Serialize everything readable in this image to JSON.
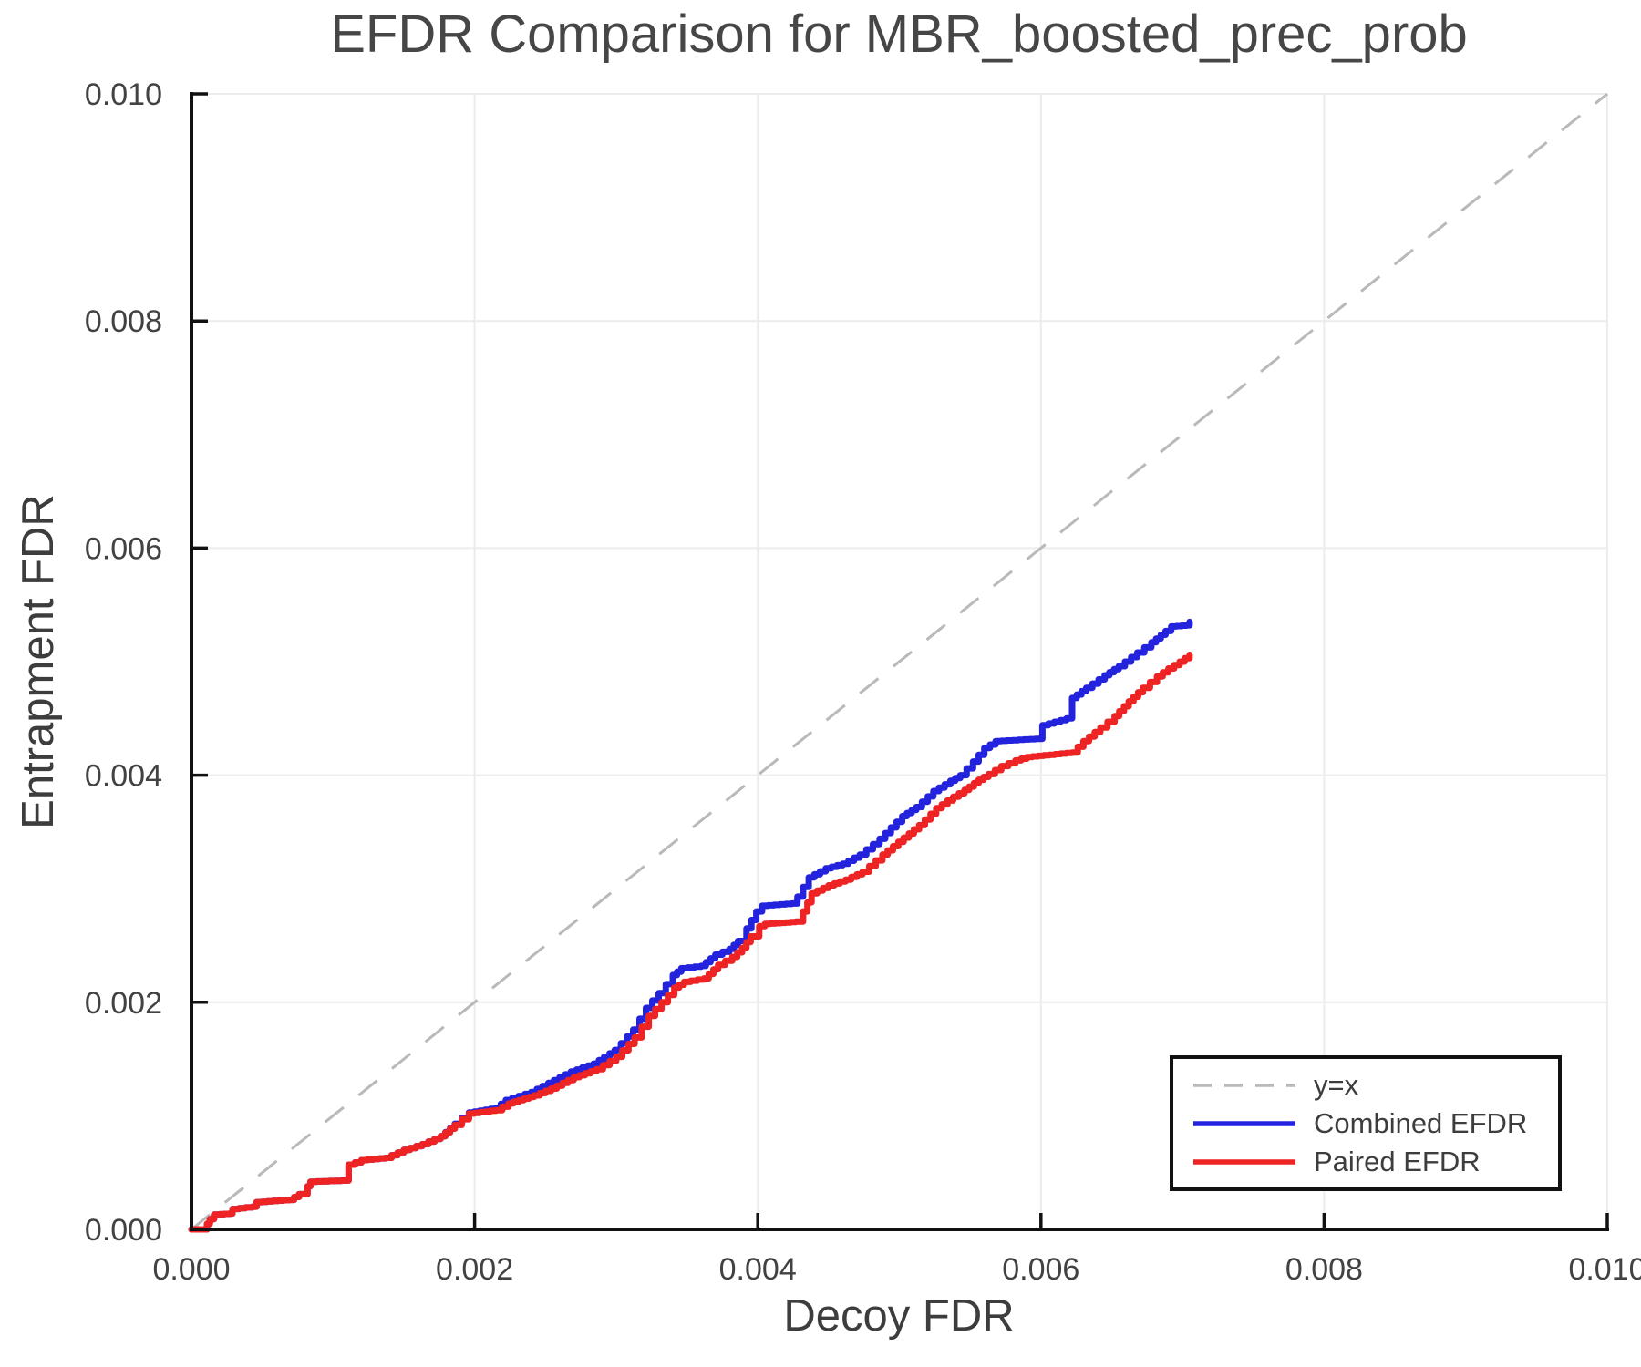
{
  "chart_data": {
    "type": "line",
    "title": "EFDR Comparison for MBR_boosted_prec_prob",
    "xlabel": "Decoy FDR",
    "ylabel": "Entrapment FDR",
    "xlim": [
      0.0,
      0.01
    ],
    "ylim": [
      0.0,
      0.01
    ],
    "grid": true,
    "legend_position": "lower right",
    "x_ticks": {
      "values": [
        0.0,
        0.002,
        0.004,
        0.006,
        0.008,
        0.01
      ],
      "labels": [
        "0.000",
        "0.002",
        "0.004",
        "0.006",
        "0.008",
        "0.010"
      ]
    },
    "y_ticks": {
      "values": [
        0.0,
        0.002,
        0.004,
        0.006,
        0.008,
        0.01
      ],
      "labels": [
        "0.000",
        "0.002",
        "0.004",
        "0.006",
        "0.008",
        "0.010"
      ]
    },
    "colors": {
      "grid": "#ececec",
      "spine": "#111111",
      "identity": "#b9b9b9",
      "combined": "#2323dd",
      "paired": "#ee2424",
      "text": "#3d3d3d"
    },
    "series": [
      {
        "name": "y=x",
        "style": "dashed",
        "color": "#b9b9b9",
        "points": [
          [
            0.0,
            0.0
          ],
          [
            0.01,
            0.01
          ]
        ]
      },
      {
        "name": "Combined EFDR",
        "style": "step",
        "color": "#2323dd",
        "points": [
          [
            0.0,
            0.0
          ],
          [
            0.0001,
            0.0
          ],
          [
            0.00011,
            5e-05
          ],
          [
            0.00013,
            9e-05
          ],
          [
            0.00016,
            0.00013
          ],
          [
            0.00027,
            0.00014
          ],
          [
            0.00029,
            0.00018
          ],
          [
            0.00043,
            0.0002
          ],
          [
            0.00046,
            0.00024
          ],
          [
            0.00069,
            0.00026
          ],
          [
            0.00076,
            0.00031
          ],
          [
            0.00082,
            0.00038
          ],
          [
            0.00084,
            0.00042
          ],
          [
            0.00106,
            0.00043
          ],
          [
            0.00111,
            0.00057
          ],
          [
            0.0012,
            0.00061
          ],
          [
            0.00137,
            0.00063
          ],
          [
            0.0015,
            0.0007
          ],
          [
            0.00163,
            0.00075
          ],
          [
            0.00176,
            0.00082
          ],
          [
            0.00186,
            0.00093
          ],
          [
            0.00196,
            0.00103
          ],
          [
            0.00215,
            0.00107
          ],
          [
            0.00222,
            0.00114
          ],
          [
            0.0024,
            0.00121
          ],
          [
            0.00252,
            0.00129
          ],
          [
            0.00268,
            0.00139
          ],
          [
            0.00284,
            0.00146
          ],
          [
            0.00299,
            0.00158
          ],
          [
            0.00312,
            0.00176
          ],
          [
            0.00321,
            0.00195
          ],
          [
            0.0033,
            0.00208
          ],
          [
            0.0034,
            0.00224
          ],
          [
            0.00346,
            0.0023
          ],
          [
            0.0036,
            0.00232
          ],
          [
            0.0037,
            0.00242
          ],
          [
            0.0038,
            0.00247
          ],
          [
            0.00386,
            0.00254
          ],
          [
            0.00392,
            0.00265
          ],
          [
            0.00399,
            0.0028
          ],
          [
            0.00403,
            0.00285
          ],
          [
            0.00424,
            0.00287
          ],
          [
            0.00428,
            0.00293
          ],
          [
            0.00436,
            0.0031
          ],
          [
            0.00448,
            0.00318
          ],
          [
            0.0046,
            0.00322
          ],
          [
            0.00472,
            0.0033
          ],
          [
            0.00486,
            0.00344
          ],
          [
            0.00502,
            0.00364
          ],
          [
            0.00512,
            0.00372
          ],
          [
            0.00524,
            0.00386
          ],
          [
            0.00536,
            0.00395
          ],
          [
            0.00543,
            0.004
          ],
          [
            0.00552,
            0.00412
          ],
          [
            0.0056,
            0.00424
          ],
          [
            0.00568,
            0.0043
          ],
          [
            0.00596,
            0.00432
          ],
          [
            0.00601,
            0.00444
          ],
          [
            0.00618,
            0.0045
          ],
          [
            0.00622,
            0.00468
          ],
          [
            0.00632,
            0.00477
          ],
          [
            0.00645,
            0.00488
          ],
          [
            0.00655,
            0.00496
          ],
          [
            0.00668,
            0.00508
          ],
          [
            0.00678,
            0.00517
          ],
          [
            0.00688,
            0.00527
          ],
          [
            0.00692,
            0.00531
          ],
          [
            0.00703,
            0.00532
          ],
          [
            0.00705,
            0.00535
          ]
        ]
      },
      {
        "name": "Paired EFDR",
        "style": "step",
        "color": "#ee2424",
        "points": [
          [
            0.0,
            0.0
          ],
          [
            0.0001,
            0.0
          ],
          [
            0.00011,
            5e-05
          ],
          [
            0.00013,
            9e-05
          ],
          [
            0.00016,
            0.00013
          ],
          [
            0.00027,
            0.00014
          ],
          [
            0.00029,
            0.00018
          ],
          [
            0.00043,
            0.0002
          ],
          [
            0.00046,
            0.00024
          ],
          [
            0.00069,
            0.00026
          ],
          [
            0.00076,
            0.00031
          ],
          [
            0.00082,
            0.00038
          ],
          [
            0.00084,
            0.00042
          ],
          [
            0.00106,
            0.00043
          ],
          [
            0.00111,
            0.00057
          ],
          [
            0.0012,
            0.00061
          ],
          [
            0.00137,
            0.00063
          ],
          [
            0.0015,
            0.0007
          ],
          [
            0.00163,
            0.00075
          ],
          [
            0.00176,
            0.00082
          ],
          [
            0.00186,
            0.00092
          ],
          [
            0.00196,
            0.00102
          ],
          [
            0.00215,
            0.00105
          ],
          [
            0.00224,
            0.00111
          ],
          [
            0.00242,
            0.00118
          ],
          [
            0.00254,
            0.00124
          ],
          [
            0.0027,
            0.00134
          ],
          [
            0.00286,
            0.00141
          ],
          [
            0.003,
            0.00152
          ],
          [
            0.00313,
            0.00169
          ],
          [
            0.00323,
            0.00188
          ],
          [
            0.00332,
            0.002
          ],
          [
            0.00341,
            0.00213
          ],
          [
            0.00348,
            0.00218
          ],
          [
            0.00362,
            0.00221
          ],
          [
            0.00372,
            0.00233
          ],
          [
            0.00382,
            0.0024
          ],
          [
            0.00389,
            0.00248
          ],
          [
            0.00395,
            0.00258
          ],
          [
            0.00401,
            0.00267
          ],
          [
            0.00405,
            0.00269
          ],
          [
            0.00427,
            0.00271
          ],
          [
            0.00432,
            0.0028
          ],
          [
            0.00438,
            0.00296
          ],
          [
            0.0045,
            0.00303
          ],
          [
            0.00462,
            0.00308
          ],
          [
            0.00474,
            0.00315
          ],
          [
            0.00488,
            0.0033
          ],
          [
            0.00503,
            0.00345
          ],
          [
            0.00514,
            0.00356
          ],
          [
            0.00526,
            0.00371
          ],
          [
            0.00538,
            0.00381
          ],
          [
            0.00546,
            0.00387
          ],
          [
            0.00556,
            0.00396
          ],
          [
            0.00563,
            0.00401
          ],
          [
            0.00572,
            0.00408
          ],
          [
            0.00582,
            0.00413
          ],
          [
            0.0059,
            0.00416
          ],
          [
            0.00622,
            0.0042
          ],
          [
            0.0063,
            0.0043
          ],
          [
            0.00642,
            0.00442
          ],
          [
            0.00652,
            0.00452
          ],
          [
            0.00662,
            0.00465
          ],
          [
            0.00672,
            0.00477
          ],
          [
            0.00682,
            0.00487
          ],
          [
            0.0069,
            0.00494
          ],
          [
            0.00698,
            0.005
          ],
          [
            0.00705,
            0.00506
          ]
        ]
      }
    ]
  }
}
